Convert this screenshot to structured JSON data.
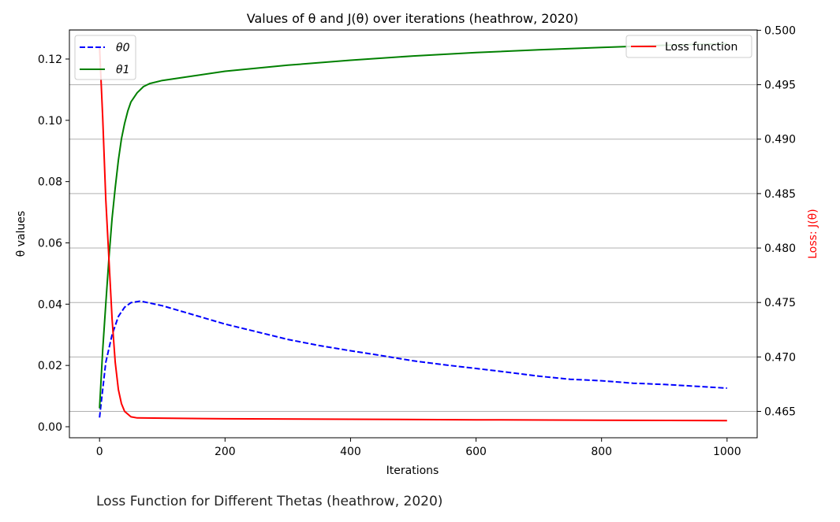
{
  "chart_data": {
    "type": "line",
    "title": "Values of θ and J(θ) over iterations (heathrow, 2020)",
    "xlabel": "Iterations",
    "ylabel_left": "θ values",
    "ylabel_right": "Loss: J(θ)",
    "xlim": [
      -48,
      1048
    ],
    "ylim_left": [
      -0.0036,
      0.1295
    ],
    "ylim_right": [
      0.46258,
      0.50003
    ],
    "x_ticks": [
      "0",
      "200",
      "400",
      "600",
      "800",
      "1000"
    ],
    "y_left_ticks": [
      "0.00",
      "0.02",
      "0.04",
      "0.06",
      "0.08",
      "0.10",
      "0.12"
    ],
    "y_right_ticks": [
      "0.465",
      "0.470",
      "0.475",
      "0.480",
      "0.485",
      "0.490",
      "0.495",
      "0.500"
    ],
    "grid": "horizontal gridlines at right-axis ticks",
    "legend_left": {
      "placement": "top-left",
      "entries": [
        "θ0",
        "θ1"
      ]
    },
    "legend_right": {
      "placement": "top-right",
      "entries": [
        "Loss function"
      ]
    },
    "series": [
      {
        "name": "θ0",
        "axis": "left",
        "color": "#0000ff",
        "dash": "dashed",
        "points": [
          [
            0,
            0.003
          ],
          [
            10,
            0.021
          ],
          [
            20,
            0.03
          ],
          [
            30,
            0.036
          ],
          [
            40,
            0.039
          ],
          [
            50,
            0.0405
          ],
          [
            65,
            0.041
          ],
          [
            100,
            0.0395
          ],
          [
            150,
            0.0365
          ],
          [
            200,
            0.0335
          ],
          [
            250,
            0.031
          ],
          [
            300,
            0.0285
          ],
          [
            350,
            0.0265
          ],
          [
            400,
            0.0248
          ],
          [
            450,
            0.0232
          ],
          [
            500,
            0.0215
          ],
          [
            550,
            0.0202
          ],
          [
            600,
            0.019
          ],
          [
            650,
            0.0178
          ],
          [
            700,
            0.0165
          ],
          [
            750,
            0.0155
          ],
          [
            800,
            0.015
          ],
          [
            850,
            0.0142
          ],
          [
            900,
            0.0138
          ],
          [
            950,
            0.0132
          ],
          [
            1000,
            0.0126
          ]
        ]
      },
      {
        "name": "θ1",
        "axis": "left",
        "color": "#008000",
        "dash": "solid",
        "points": [
          [
            0,
            0.006
          ],
          [
            5,
            0.025
          ],
          [
            10,
            0.04
          ],
          [
            15,
            0.055
          ],
          [
            20,
            0.068
          ],
          [
            25,
            0.078
          ],
          [
            30,
            0.087
          ],
          [
            35,
            0.094
          ],
          [
            40,
            0.099
          ],
          [
            45,
            0.103
          ],
          [
            50,
            0.106
          ],
          [
            60,
            0.109
          ],
          [
            70,
            0.111
          ],
          [
            80,
            0.112
          ],
          [
            100,
            0.113
          ],
          [
            150,
            0.1145
          ],
          [
            200,
            0.116
          ],
          [
            300,
            0.118
          ],
          [
            400,
            0.1196
          ],
          [
            500,
            0.121
          ],
          [
            600,
            0.1221
          ],
          [
            700,
            0.123
          ],
          [
            800,
            0.1238
          ],
          [
            900,
            0.1245
          ],
          [
            1000,
            0.125
          ]
        ]
      },
      {
        "name": "Loss function",
        "axis": "right",
        "color": "#ff0000",
        "dash": "solid",
        "points": [
          [
            0,
            0.4985
          ],
          [
            5,
            0.492
          ],
          [
            10,
            0.4845
          ],
          [
            15,
            0.479
          ],
          [
            20,
            0.4735
          ],
          [
            25,
            0.4695
          ],
          [
            30,
            0.467
          ],
          [
            35,
            0.4657
          ],
          [
            40,
            0.465
          ],
          [
            50,
            0.4645
          ],
          [
            60,
            0.4644
          ],
          [
            100,
            0.46438
          ],
          [
            200,
            0.46432
          ],
          [
            400,
            0.46428
          ],
          [
            600,
            0.46423
          ],
          [
            800,
            0.46419
          ],
          [
            1000,
            0.46415
          ]
        ]
      }
    ]
  },
  "caption": "Loss Function for Different Thetas (heathrow, 2020)"
}
